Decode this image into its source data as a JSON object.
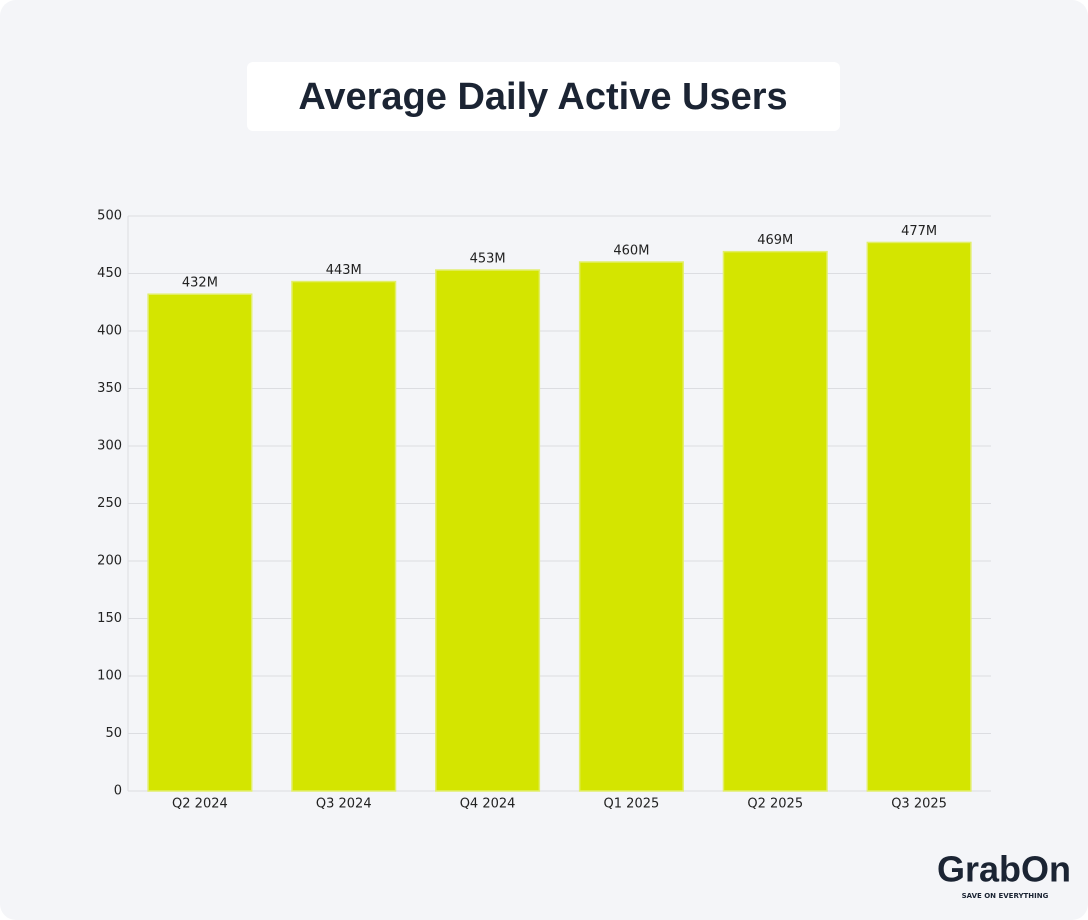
{
  "chart_data": {
    "type": "bar",
    "title": "Average Daily Active Users",
    "categories": [
      "Q2 2024",
      "Q3 2024",
      "Q4 2024",
      "Q1 2025",
      "Q2 2025",
      "Q3 2025"
    ],
    "values": [
      432,
      443,
      453,
      460,
      469,
      477
    ],
    "value_labels": [
      "432M",
      "443M",
      "453M",
      "460M",
      "469M",
      "477M"
    ],
    "color": "#d4e500",
    "ylim": [
      0,
      500
    ],
    "yticks": [
      0,
      50,
      100,
      150,
      200,
      250,
      300,
      350,
      400,
      450,
      500
    ],
    "grid": true
  },
  "logo": {
    "name": "GrabOn",
    "tagline": "SAVE ON EVERYTHING"
  }
}
